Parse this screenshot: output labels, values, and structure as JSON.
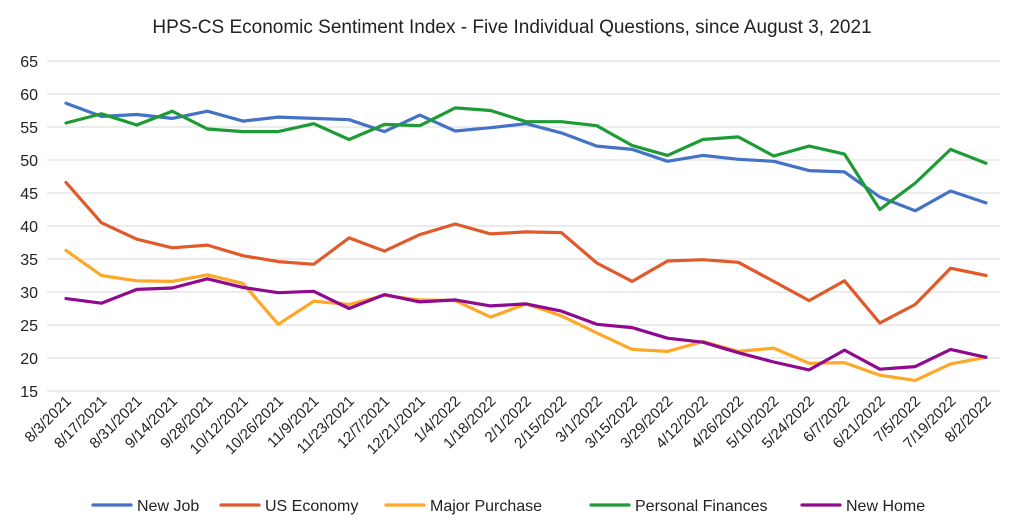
{
  "chart_data": {
    "type": "line",
    "title": "HPS-CS Economic Sentiment Index - Five Individual Questions, since August 3, 2021",
    "xlabel": "",
    "ylabel": "",
    "ylim": [
      15,
      65
    ],
    "yticks": [
      "15",
      "20",
      "25",
      "30",
      "35",
      "40",
      "45",
      "50",
      "55",
      "60",
      "65"
    ],
    "grid": true,
    "legend": "bottom",
    "x": [
      "8/3/2021",
      "8/17/2021",
      "8/31/2021",
      "9/14/2021",
      "9/28/2021",
      "10/12/2021",
      "10/26/2021",
      "11/9/2021",
      "11/23/2021",
      "12/7/2021",
      "12/21/2021",
      "1/4/2022",
      "1/18/2022",
      "2/1/2022",
      "2/15/2022",
      "3/1/2022",
      "3/15/2022",
      "3/29/2022",
      "4/12/2022",
      "4/26/2022",
      "5/10/2022",
      "5/24/2022",
      "6/7/2022",
      "6/21/2022",
      "7/5/2022",
      "7/19/2022",
      "8/2/2022"
    ],
    "series": [
      {
        "name": "New Job",
        "color": "#4472c4",
        "values": [
          58.6,
          56.6,
          56.9,
          56.3,
          57.4,
          55.9,
          56.5,
          56.3,
          56.1,
          54.3,
          56.8,
          54.4,
          54.9,
          55.5,
          54.1,
          52.1,
          51.6,
          49.8,
          50.7,
          50.1,
          49.8,
          48.4,
          48.2,
          44.4,
          42.3,
          45.3,
          43.5
        ]
      },
      {
        "name": "US Economy",
        "color": "#e05a2b",
        "values": [
          46.6,
          40.5,
          38.0,
          36.7,
          37.1,
          35.5,
          34.6,
          34.2,
          38.2,
          36.2,
          38.7,
          40.3,
          38.8,
          39.1,
          39.0,
          34.4,
          31.6,
          34.7,
          34.9,
          34.5,
          31.6,
          28.7,
          31.7,
          25.3,
          28.1,
          33.6,
          32.5
        ]
      },
      {
        "name": "Major Purchase",
        "color": "#ffa726",
        "values": [
          36.3,
          32.5,
          31.7,
          31.6,
          32.6,
          31.3,
          25.1,
          28.6,
          28.1,
          29.5,
          28.8,
          28.7,
          26.2,
          28.2,
          26.4,
          23.8,
          21.3,
          21.0,
          22.5,
          21.0,
          21.5,
          19.2,
          19.3,
          17.4,
          16.6,
          19.1,
          20.1
        ]
      },
      {
        "name": "Personal Finances",
        "color": "#1e9b35",
        "values": [
          55.6,
          57.0,
          55.3,
          57.4,
          54.7,
          54.3,
          54.3,
          55.5,
          53.1,
          55.4,
          55.2,
          57.9,
          57.5,
          55.8,
          55.8,
          55.2,
          52.2,
          50.7,
          53.1,
          53.5,
          50.6,
          52.1,
          50.9,
          42.5,
          46.5,
          51.6,
          49.5
        ]
      },
      {
        "name": "New Home",
        "color": "#8e0a8e",
        "values": [
          29.0,
          28.3,
          30.4,
          30.6,
          32.0,
          30.7,
          29.9,
          30.1,
          27.5,
          29.6,
          28.5,
          28.8,
          27.9,
          28.2,
          27.1,
          25.1,
          24.6,
          23.0,
          22.4,
          20.8,
          19.4,
          18.2,
          21.2,
          18.3,
          18.7,
          21.3,
          20.1
        ]
      }
    ]
  }
}
